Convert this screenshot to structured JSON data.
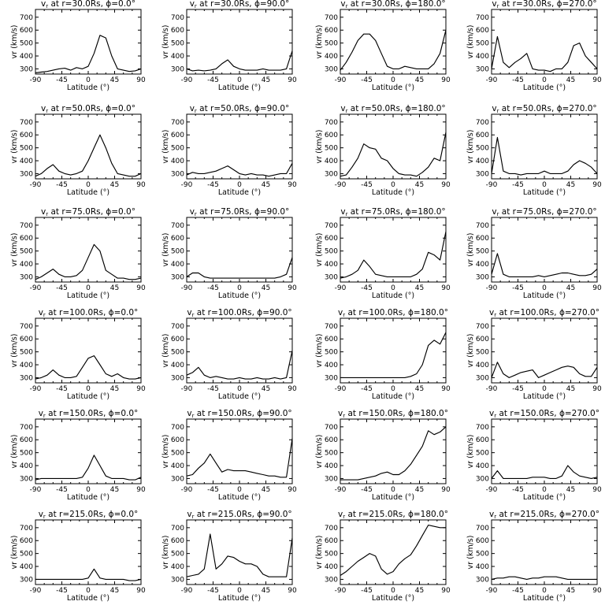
{
  "chart_data": {
    "type": "line",
    "grid": false,
    "layout": {
      "rows": 6,
      "cols": 4
    },
    "xlabel": "Latitude (°)",
    "ylabel": "vr (km/s)",
    "xlim": [
      -90,
      90
    ],
    "ylim": [
      260,
      760
    ],
    "xticks": [
      "-90",
      "-45",
      "0",
      "45",
      "90"
    ],
    "yticks": [
      "300",
      "400",
      "500",
      "600",
      "700"
    ],
    "x": [
      -90,
      -80,
      -70,
      -60,
      -50,
      -40,
      -30,
      -20,
      -10,
      0,
      10,
      20,
      30,
      40,
      50,
      60,
      70,
      80,
      90
    ],
    "panels": [
      {
        "r": "30.0",
        "phi": "0.0",
        "values": [
          270,
          275,
          280,
          290,
          300,
          305,
          290,
          310,
          300,
          320,
          420,
          560,
          540,
          400,
          300,
          290,
          280,
          285,
          300
        ]
      },
      {
        "r": "30.0",
        "phi": "90.0",
        "values": [
          300,
          285,
          290,
          285,
          290,
          300,
          340,
          370,
          320,
          300,
          290,
          290,
          290,
          300,
          290,
          290,
          290,
          300,
          440
        ]
      },
      {
        "r": "30.0",
        "phi": "180.0",
        "values": [
          290,
          350,
          430,
          520,
          570,
          570,
          520,
          420,
          320,
          300,
          300,
          320,
          310,
          300,
          300,
          300,
          340,
          420,
          600
        ]
      },
      {
        "r": "30.0",
        "phi": "270.0",
        "values": [
          300,
          550,
          350,
          310,
          350,
          380,
          420,
          300,
          290,
          290,
          280,
          300,
          300,
          350,
          480,
          500,
          400,
          350,
          300
        ]
      },
      {
        "r": "50.0",
        "phi": "0.0",
        "values": [
          280,
          300,
          340,
          370,
          320,
          300,
          290,
          300,
          320,
          400,
          500,
          600,
          500,
          380,
          300,
          290,
          280,
          280,
          300
        ]
      },
      {
        "r": "50.0",
        "phi": "90.0",
        "values": [
          290,
          310,
          300,
          300,
          310,
          320,
          340,
          360,
          330,
          300,
          290,
          300,
          290,
          290,
          280,
          290,
          300,
          300,
          380
        ]
      },
      {
        "r": "50.0",
        "phi": "180.0",
        "values": [
          280,
          290,
          350,
          420,
          530,
          500,
          490,
          420,
          400,
          340,
          300,
          290,
          290,
          280,
          310,
          350,
          420,
          400,
          620
        ]
      },
      {
        "r": "50.0",
        "phi": "270.0",
        "values": [
          300,
          580,
          320,
          300,
          300,
          290,
          300,
          300,
          300,
          320,
          300,
          300,
          300,
          320,
          370,
          400,
          380,
          350,
          300
        ]
      },
      {
        "r": "75.0",
        "phi": "0.0",
        "values": [
          280,
          300,
          330,
          360,
          320,
          300,
          300,
          310,
          350,
          450,
          550,
          500,
          350,
          320,
          290,
          290,
          280,
          280,
          290
        ]
      },
      {
        "r": "75.0",
        "phi": "90.0",
        "values": [
          300,
          330,
          330,
          300,
          290,
          290,
          290,
          290,
          290,
          290,
          290,
          290,
          290,
          290,
          290,
          290,
          300,
          320,
          450
        ]
      },
      {
        "r": "75.0",
        "phi": "180.0",
        "values": [
          290,
          300,
          320,
          350,
          430,
          380,
          320,
          310,
          300,
          300,
          300,
          300,
          300,
          320,
          360,
          490,
          470,
          430,
          650
        ]
      },
      {
        "r": "75.0",
        "phi": "270.0",
        "values": [
          320,
          480,
          320,
          300,
          300,
          300,
          300,
          300,
          310,
          300,
          310,
          320,
          330,
          330,
          320,
          310,
          310,
          320,
          360
        ]
      },
      {
        "r": "100.0",
        "phi": "0.0",
        "values": [
          290,
          300,
          320,
          360,
          320,
          300,
          300,
          310,
          380,
          450,
          470,
          400,
          330,
          310,
          330,
          300,
          290,
          290,
          300
        ]
      },
      {
        "r": "100.0",
        "phi": "90.0",
        "values": [
          320,
          340,
          380,
          320,
          300,
          310,
          300,
          290,
          290,
          300,
          290,
          290,
          300,
          290,
          290,
          300,
          290,
          300,
          510
        ]
      },
      {
        "r": "100.0",
        "phi": "180.0",
        "values": [
          300,
          300,
          300,
          300,
          300,
          300,
          300,
          300,
          300,
          300,
          300,
          300,
          310,
          330,
          400,
          550,
          590,
          560,
          650
        ]
      },
      {
        "r": "100.0",
        "phi": "270.0",
        "values": [
          300,
          420,
          330,
          300,
          320,
          340,
          350,
          360,
          300,
          320,
          340,
          360,
          380,
          390,
          380,
          330,
          310,
          310,
          380
        ]
      },
      {
        "r": "150.0",
        "phi": "0.0",
        "values": [
          290,
          300,
          300,
          300,
          300,
          300,
          300,
          300,
          310,
          380,
          480,
          400,
          320,
          300,
          300,
          300,
          290,
          290,
          310
        ]
      },
      {
        "r": "150.0",
        "phi": "90.0",
        "values": [
          320,
          330,
          380,
          420,
          490,
          420,
          350,
          370,
          360,
          360,
          360,
          350,
          340,
          330,
          320,
          320,
          310,
          310,
          610
        ]
      },
      {
        "r": "150.0",
        "phi": "180.0",
        "values": [
          290,
          290,
          290,
          290,
          300,
          310,
          320,
          340,
          350,
          330,
          330,
          360,
          410,
          480,
          550,
          670,
          640,
          660,
          700
        ]
      },
      {
        "r": "150.0",
        "phi": "270.0",
        "values": [
          300,
          360,
          300,
          300,
          300,
          300,
          300,
          310,
          310,
          310,
          300,
          300,
          320,
          400,
          350,
          320,
          310,
          300,
          310
        ]
      },
      {
        "r": "215.0",
        "phi": "0.0",
        "values": [
          300,
          300,
          300,
          300,
          300,
          300,
          300,
          300,
          300,
          310,
          380,
          310,
          300,
          300,
          300,
          300,
          290,
          290,
          300
        ]
      },
      {
        "r": "215.0",
        "phi": "90.0",
        "values": [
          320,
          330,
          340,
          380,
          650,
          380,
          420,
          480,
          470,
          440,
          420,
          420,
          400,
          340,
          320,
          320,
          320,
          320,
          620
        ]
      },
      {
        "r": "215.0",
        "phi": "180.0",
        "values": [
          330,
          360,
          400,
          440,
          470,
          500,
          480,
          380,
          340,
          360,
          420,
          460,
          490,
          560,
          640,
          720,
          710,
          700,
          700
        ]
      },
      {
        "r": "215.0",
        "phi": "270.0",
        "values": [
          300,
          310,
          310,
          320,
          320,
          310,
          300,
          310,
          310,
          320,
          320,
          320,
          310,
          300,
          300,
          300,
          300,
          300,
          300
        ]
      }
    ]
  }
}
